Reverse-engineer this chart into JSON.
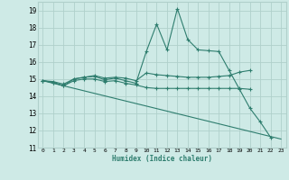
{
  "background_color": "#ceeae6",
  "grid_color": "#b0d0cb",
  "line_color": "#2e7d6e",
  "xlim": [
    -0.5,
    23.5
  ],
  "ylim": [
    11,
    19.5
  ],
  "xlabel": "Humidex (Indice chaleur)",
  "xticks": [
    0,
    1,
    2,
    3,
    4,
    5,
    6,
    7,
    8,
    9,
    10,
    11,
    12,
    13,
    14,
    15,
    16,
    17,
    18,
    19,
    20,
    21,
    22,
    23
  ],
  "yticks": [
    11,
    12,
    13,
    14,
    15,
    16,
    17,
    18,
    19
  ],
  "series": [
    {
      "x": [
        0,
        1,
        2,
        3,
        4,
        5,
        6,
        7,
        8,
        9,
        10,
        11,
        12,
        13,
        14,
        15,
        16,
        17,
        18,
        19,
        20,
        21,
        22
      ],
      "y": [
        14.9,
        14.8,
        14.6,
        15.0,
        15.1,
        15.15,
        14.95,
        15.05,
        14.9,
        14.75,
        16.6,
        18.2,
        16.7,
        19.1,
        17.3,
        16.7,
        16.65,
        16.6,
        15.5,
        14.4,
        13.3,
        12.5,
        11.6
      ],
      "marker": true
    },
    {
      "x": [
        0,
        1,
        2,
        3,
        4,
        5,
        6,
        7,
        8,
        9,
        10,
        11,
        12,
        13,
        14,
        15,
        16,
        17,
        18,
        19,
        20
      ],
      "y": [
        14.9,
        14.85,
        14.7,
        15.0,
        15.1,
        15.2,
        15.05,
        15.1,
        15.05,
        14.9,
        15.35,
        15.25,
        15.2,
        15.15,
        15.1,
        15.1,
        15.1,
        15.15,
        15.2,
        15.4,
        15.5
      ],
      "marker": true
    },
    {
      "x": [
        0,
        1,
        2,
        3,
        4,
        5,
        6,
        7,
        8,
        9,
        10,
        11,
        12,
        13,
        14,
        15,
        16,
        17,
        18,
        19,
        20
      ],
      "y": [
        14.9,
        14.8,
        14.6,
        14.9,
        15.0,
        15.0,
        14.85,
        14.9,
        14.75,
        14.65,
        14.5,
        14.45,
        14.45,
        14.45,
        14.45,
        14.45,
        14.45,
        14.45,
        14.45,
        14.45,
        14.4
      ],
      "marker": true
    },
    {
      "x": [
        0,
        23
      ],
      "y": [
        14.9,
        11.5
      ],
      "marker": false
    }
  ]
}
